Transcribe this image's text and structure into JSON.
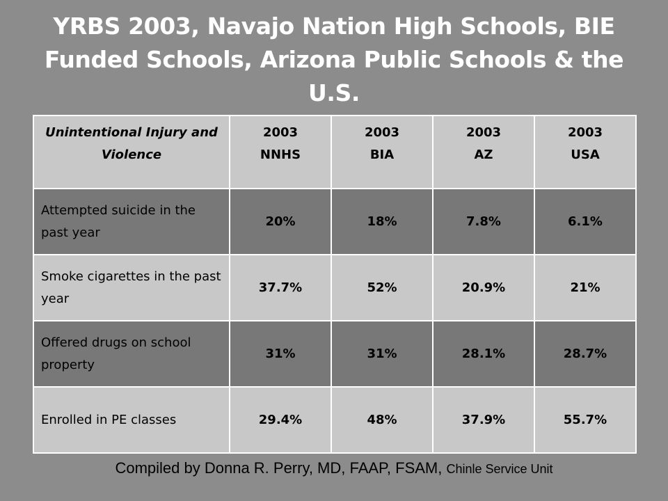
{
  "title": "YRBS 2003, Navajo Nation High Schools, BIE Funded Schools, Arizona Public Schools & the U.S.",
  "table": {
    "header": {
      "label": "Unintentional Injury and Violence",
      "columns": [
        {
          "year": "2003",
          "name": "NNHS"
        },
        {
          "year": "2003",
          "name": "BIA"
        },
        {
          "year": "2003",
          "name": "AZ"
        },
        {
          "year": "2003",
          "name": "USA"
        }
      ]
    },
    "rows": [
      {
        "label": "Attempted suicide in the past year",
        "values": [
          "20%",
          "18%",
          "7.8%",
          "6.1%"
        ]
      },
      {
        "label": "Smoke cigarettes in the past year",
        "values": [
          "37.7%",
          "52%",
          "20.9%",
          "21%"
        ]
      },
      {
        "label": "Offered drugs on school property",
        "values": [
          "31%",
          "31%",
          "28.1%",
          "28.7%"
        ]
      },
      {
        "label": "Enrolled in PE classes",
        "values": [
          "29.4%",
          "48%",
          "37.9%",
          "55.7%"
        ]
      }
    ]
  },
  "footer": {
    "main": "Compiled by Donna R. Perry, MD, FAAP, FSAM, ",
    "unit": "Chinle Service Unit"
  }
}
